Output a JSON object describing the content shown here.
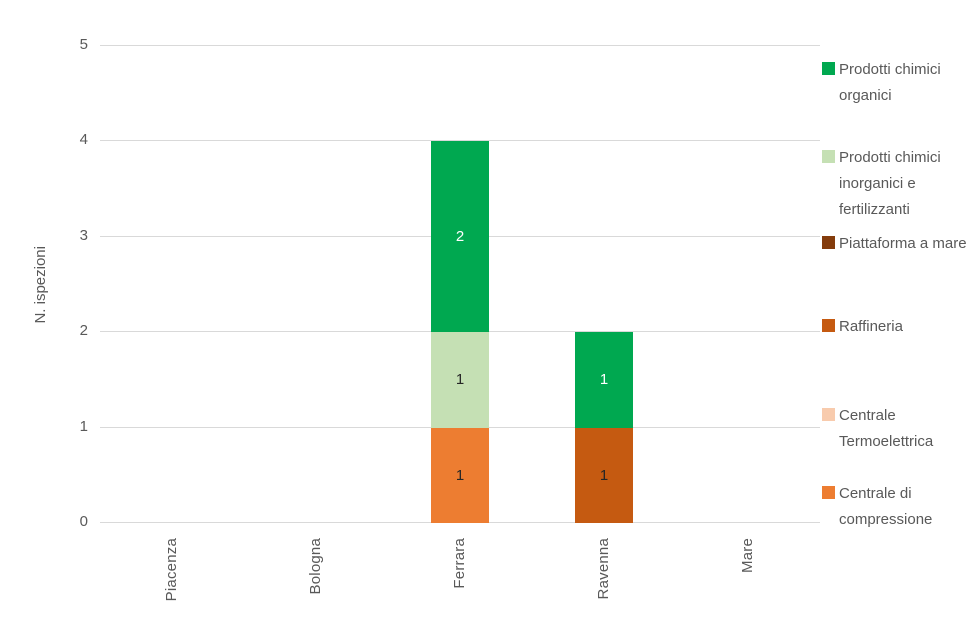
{
  "chart_data": {
    "type": "bar",
    "stacked": true,
    "title": "",
    "xlabel": "",
    "ylabel": "N. ispezioni",
    "categories": [
      "Piacenza",
      "Bologna",
      "Ferrara",
      "Ravenna",
      "Mare"
    ],
    "series": [
      {
        "name": "Prodotti chimici organici",
        "color": "#00A850",
        "label_color": "#FFFFFF",
        "values": [
          0,
          0,
          2,
          1,
          0
        ]
      },
      {
        "name": "Prodotti chimici inorganici e fertilizzanti",
        "color": "#C5E0B4",
        "label_color": "#262626",
        "values": [
          0,
          0,
          1,
          0,
          0
        ]
      },
      {
        "name": "Piattaforma a mare",
        "color": "#843C0C",
        "label_color": "#FFFFFF",
        "values": [
          0,
          0,
          0,
          0,
          0
        ]
      },
      {
        "name": "Raffineria",
        "color": "#C55A11",
        "label_color": "#262626",
        "values": [
          0,
          0,
          0,
          1,
          0
        ]
      },
      {
        "name": "Centrale Termoelettrica",
        "color": "#F8CBAD",
        "label_color": "#262626",
        "values": [
          0,
          0,
          0,
          0,
          0
        ]
      },
      {
        "name": "Centrale di compressione",
        "color": "#ED7D31",
        "label_color": "#262626",
        "values": [
          0,
          0,
          1,
          0,
          0
        ]
      }
    ],
    "totals": {
      "Piacenza": 0,
      "Bologna": 0,
      "Ferrara": 4,
      "Ravenna": 2,
      "Mare": 0
    },
    "ylim": [
      0,
      5
    ],
    "yticks": [
      0,
      1,
      2,
      3,
      4,
      5
    ],
    "grid": true,
    "legend_position": "right",
    "axis_text_color": "#595959",
    "gridline_color": "#D9D9D9",
    "background_color": "#FFFFFF"
  }
}
